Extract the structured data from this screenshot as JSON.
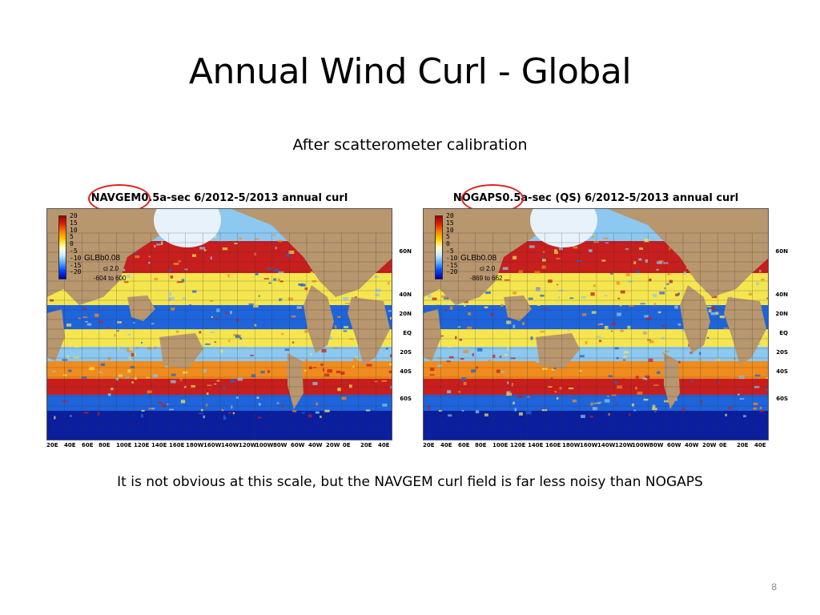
{
  "slide": {
    "title": "Annual Wind Curl - Global",
    "subtitle": "After scatterometer calibration",
    "caption": "It is not obvious at this scale, but the NAVGEM curl field is far less noisy than NOGAPS",
    "page_number": "8"
  },
  "colors": {
    "ocean_red": "#c81e1e",
    "ocean_orange": "#f08c1e",
    "ocean_yellow": "#f5e650",
    "ocean_lightblue": "#8cc8f0",
    "ocean_blue": "#1e64dc",
    "ocean_darkblue": "#0a1ea0",
    "land": "#b8966e",
    "highlight": "#e02020"
  },
  "panels": [
    {
      "model": "NAVGEM",
      "title_rest": "0.5a-sec 6/2012-5/2013 annual curl",
      "grid_name": "GLBb0.08",
      "ci": "ci 2.0",
      "range": "-604 to 600"
    },
    {
      "model": "NOGAPS",
      "title_rest": "0.5a-sec (QS) 6/2012-5/2013 annual curl",
      "grid_name": "GLBb0.08",
      "ci": "ci 2.0",
      "range": "-869 to 662"
    }
  ],
  "colorbar_labels": [
    "20",
    "15",
    "10",
    "5",
    "0",
    "-5",
    "-10",
    "-15",
    "-20"
  ],
  "lat_labels": [
    "60N",
    "40N",
    "20N",
    "EQ",
    "20S",
    "40S",
    "60S"
  ],
  "lon_labels": [
    "20E",
    "40E",
    "60E",
    "80E",
    "100E",
    "120E",
    "140E",
    "160E",
    "180W",
    "160W",
    "140W",
    "120W",
    "100W",
    "80W",
    "60W",
    "40W",
    "20W",
    "0E",
    "20E",
    "40E"
  ]
}
